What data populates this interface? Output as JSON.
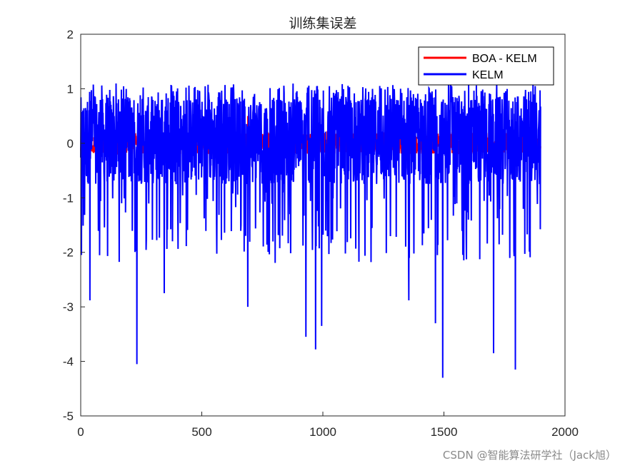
{
  "chart_data": {
    "type": "line",
    "title": "训练集误差",
    "xlabel": "",
    "ylabel": "",
    "xlim": [
      0,
      2000
    ],
    "ylim": [
      -5,
      2
    ],
    "xticks": [
      "0",
      "500",
      "1000",
      "1500",
      "2000"
    ],
    "yticks": [
      "2",
      "1",
      "0",
      "-1",
      "-2",
      "-3",
      "-4",
      "-5"
    ],
    "grid": true,
    "legend_position": "top-right",
    "n_points": 1900,
    "series": [
      {
        "name": "BOA - KELM",
        "color": "#ff0000",
        "description": "",
        "sample_points": [
          [
            0,
            0.0
          ],
          [
            120,
            0.25
          ],
          [
            230,
            0.0
          ],
          [
            690,
            0.5
          ],
          [
            1000,
            0.0
          ],
          [
            1500,
            0.0
          ],
          [
            1900,
            0.0
          ]
        ]
      },
      {
        "name": "KELM",
        "color": "#0000ff",
        "description": "",
        "min_points": [
          [
            38,
            -2.88
          ],
          [
            232,
            -4.05
          ],
          [
            345,
            -2.75
          ],
          [
            690,
            -3.0
          ],
          [
            930,
            -3.55
          ],
          [
            970,
            -3.78
          ],
          [
            995,
            -3.35
          ],
          [
            1355,
            -2.88
          ],
          [
            1465,
            -3.3
          ],
          [
            1495,
            -4.3
          ],
          [
            1705,
            -3.85
          ],
          [
            1795,
            -4.15
          ]
        ],
        "typical_range": [
          -0.8,
          1.1
        ]
      }
    ]
  },
  "watermark": "CSDN @智能算法研学社（Jack旭）"
}
